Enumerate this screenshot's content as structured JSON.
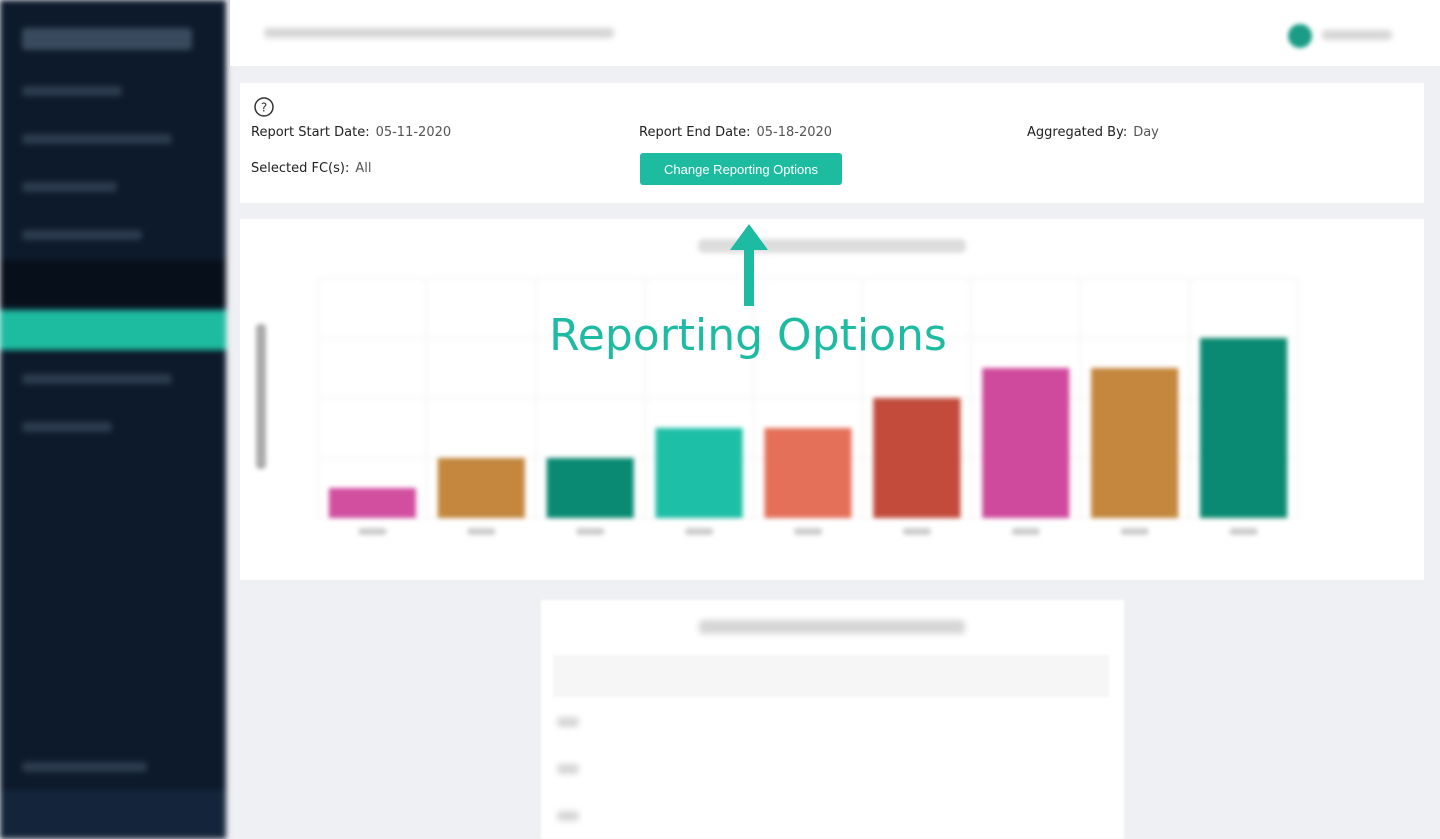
{
  "options": {
    "start_label": "Report Start Date:",
    "start_value": "05-11-2020",
    "end_label": "Report End Date:",
    "end_value": "05-18-2020",
    "agg_label": "Aggregated By:",
    "agg_value": "Day",
    "fc_label": "Selected FC(s):",
    "fc_value": "All",
    "button": "Change Reporting Options"
  },
  "callout": "Reporting Options",
  "chart_data": {
    "type": "bar",
    "values": [
      1,
      2,
      2,
      3,
      3,
      4,
      5,
      5,
      6
    ],
    "colors": [
      "#d24fa0",
      "#c4873d",
      "#0a8a72",
      "#1dbfa6",
      "#e5705a",
      "#c24b3b",
      "#cf4a9d",
      "#c4873d",
      "#0a8a72"
    ],
    "ylim": [
      0,
      8
    ]
  }
}
